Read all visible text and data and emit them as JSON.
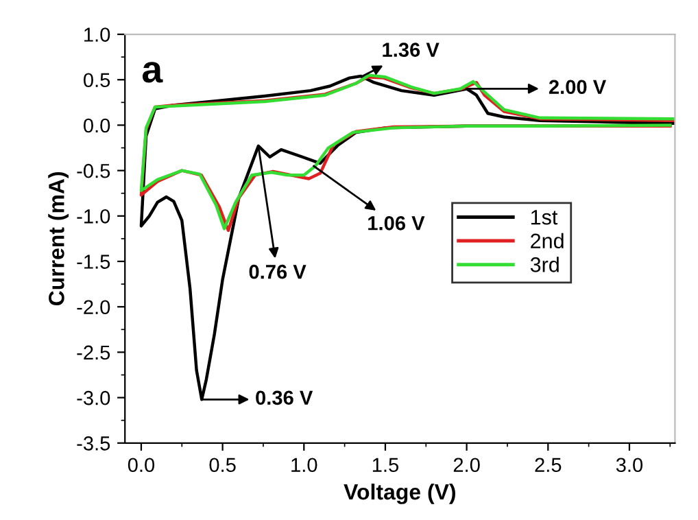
{
  "chart_data": {
    "type": "line",
    "xlabel": "Voltage (V)",
    "ylabel": "Current (mA)",
    "xlim": [
      -0.1,
      3.28
    ],
    "ylim": [
      -3.5,
      1.0
    ],
    "xticks": [
      {
        "value": 0,
        "label": "0.0"
      },
      0.5,
      {
        "value": 1,
        "label": "1.0"
      },
      1.5,
      {
        "value": 2,
        "label": "2.0"
      },
      2.5,
      {
        "value": 3,
        "label": "3.0"
      }
    ],
    "yticks": [
      {
        "value": -3.5,
        "label": "-3.5"
      },
      {
        "value": -3,
        "label": "-3.0"
      },
      {
        "value": -2.5,
        "label": "-2.5"
      },
      {
        "value": -2,
        "label": "-2.0"
      },
      {
        "value": -1.5,
        "label": "-1.5"
      },
      {
        "value": -1,
        "label": "-1.0"
      },
      {
        "value": -0.5,
        "label": "-0.5"
      },
      {
        "value": 0,
        "label": "0.0"
      },
      {
        "value": 0.5,
        "label": "0.5"
      },
      {
        "value": 1,
        "label": "1.0"
      }
    ],
    "grid": false,
    "legend": "right",
    "marker": "none",
    "line_style": "solid",
    "series": [
      {
        "name": "1st",
        "color": "#000000",
        "x": [
          3.25,
          2.5,
          2.0,
          1.5,
          1.32,
          1.21,
          1.1,
          0.99,
          0.86,
          0.79,
          0.72,
          0.6,
          0.5,
          0.45,
          0.4,
          0.372,
          0.34,
          0.3,
          0.25,
          0.2,
          0.155,
          0.1,
          0.05,
          0.0,
          0.03,
          0.085,
          0.2,
          0.48,
          0.76,
          1.04,
          1.16,
          1.28,
          1.35,
          1.43,
          1.6,
          1.8,
          2.0,
          2.06,
          2.13,
          2.23,
          2.45,
          3.27
        ],
        "values": [
          0.0,
          -0.01,
          -0.01,
          -0.03,
          -0.08,
          -0.22,
          -0.42,
          -0.35,
          -0.27,
          -0.35,
          -0.23,
          -0.8,
          -1.7,
          -2.3,
          -2.8,
          -3.02,
          -2.7,
          -1.8,
          -1.05,
          -0.84,
          -0.79,
          -0.85,
          -1.0,
          -1.11,
          -0.12,
          0.18,
          0.22,
          0.27,
          0.32,
          0.38,
          0.43,
          0.52,
          0.54,
          0.47,
          0.38,
          0.33,
          0.4,
          0.33,
          0.13,
          0.09,
          0.05,
          0.02
        ]
      },
      {
        "name": "2nd",
        "color": "#e02020",
        "x": [
          3.25,
          2.5,
          2.0,
          1.55,
          1.32,
          1.18,
          1.1,
          1.03,
          0.92,
          0.81,
          0.7,
          0.6,
          0.535,
          0.48,
          0.37,
          0.25,
          0.1,
          0.0,
          0.03,
          0.085,
          0.2,
          0.76,
          1.13,
          1.32,
          1.39,
          1.49,
          1.66,
          1.8,
          1.97,
          2.06,
          2.11,
          2.23,
          2.45,
          3.27
        ],
        "values": [
          -0.01,
          -0.01,
          -0.01,
          -0.02,
          -0.07,
          -0.22,
          -0.53,
          -0.59,
          -0.55,
          -0.51,
          -0.55,
          -0.8,
          -1.16,
          -0.9,
          -0.55,
          -0.5,
          -0.62,
          -0.77,
          -0.05,
          0.2,
          0.22,
          0.27,
          0.34,
          0.46,
          0.53,
          0.52,
          0.41,
          0.35,
          0.4,
          0.47,
          0.33,
          0.15,
          0.07,
          0.05
        ]
      },
      {
        "name": "3rd",
        "color": "#33dd33",
        "x": [
          3.25,
          2.5,
          2.0,
          1.55,
          1.3,
          1.15,
          1.07,
          1.0,
          0.9,
          0.8,
          0.68,
          0.58,
          0.51,
          0.46,
          0.36,
          0.25,
          0.1,
          0.0,
          0.03,
          0.085,
          0.2,
          0.76,
          1.13,
          1.32,
          1.4,
          1.5,
          1.66,
          1.8,
          1.96,
          2.04,
          2.1,
          2.23,
          2.45,
          3.27
        ],
        "values": [
          0.0,
          -0.01,
          -0.01,
          -0.03,
          -0.08,
          -0.25,
          -0.45,
          -0.55,
          -0.55,
          -0.52,
          -0.55,
          -0.85,
          -1.14,
          -0.88,
          -0.54,
          -0.5,
          -0.6,
          -0.72,
          -0.03,
          0.2,
          0.21,
          0.26,
          0.33,
          0.46,
          0.55,
          0.53,
          0.42,
          0.35,
          0.4,
          0.48,
          0.38,
          0.17,
          0.08,
          0.07
        ]
      }
    ],
    "annotations": [
      "a",
      {
        "text": "1.36 V",
        "x": 1.36,
        "y": 0.54
      },
      "2.00 V",
      {
        "text": "0.76 V",
        "x": 0.72,
        "y": -0.23
      },
      {
        "text": "1.06 V",
        "x": 1.06,
        "y": -0.45
      },
      {
        "text": "0.36 V",
        "x": 0.372,
        "y": -3.02
      }
    ]
  }
}
